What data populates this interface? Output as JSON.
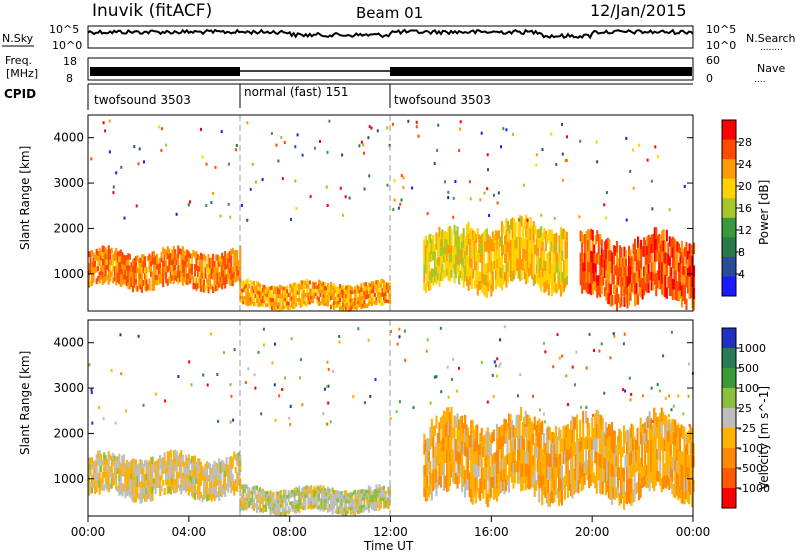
{
  "header": {
    "station": "Inuvik (fitACF)",
    "beam": "Beam 01",
    "date": "12/Jan/2015"
  },
  "nsky": {
    "label": "N.Sky",
    "ticks": [
      "10^5",
      "10^0"
    ],
    "right_ticks": [
      "10^5",
      "10^0"
    ],
    "right_label": "N.Search",
    "right_dots": "........"
  },
  "freq": {
    "label_line1": "Freq.",
    "label_line2": "[MHz]",
    "ticks": [
      "18",
      "8"
    ],
    "right_ticks": [
      "60",
      "0"
    ],
    "right_label": "Nave",
    "right_dots": "...."
  },
  "cpid": {
    "label": "CPID",
    "segments": [
      {
        "name": "twofsound 3503",
        "start_hour": 0,
        "end_hour": 6
      },
      {
        "name": "normal (fast) 151",
        "start_hour": 6,
        "end_hour": 12
      },
      {
        "name": "twofsound 3503",
        "start_hour": 12,
        "end_hour": 24
      }
    ]
  },
  "xaxis": {
    "label": "Time UT",
    "ticks": [
      "00:00",
      "04:00",
      "08:00",
      "12:00",
      "16:00",
      "20:00",
      "00:00"
    ],
    "range_hours": [
      0,
      24
    ]
  },
  "power_panel": {
    "ylabel": "Slant Range [km]",
    "yticks": [
      "4000",
      "3000",
      "2000",
      "1000"
    ],
    "colorbar_label": "Power [dB]",
    "colorbar_ticks": [
      "28",
      "24",
      "20",
      "16",
      "12",
      "8",
      "4"
    ]
  },
  "velocity_panel": {
    "ylabel": "Slant Range [km]",
    "yticks": [
      "4000",
      "3000",
      "2000",
      "1000"
    ],
    "colorbar_label": "Velocity [m s^-1]",
    "colorbar_ticks": [
      "1000",
      "500",
      "100",
      "25",
      "-25",
      "-100",
      "-500",
      "-1000"
    ]
  },
  "colors": {
    "power_scale": [
      "#ff0000",
      "#ff4a00",
      "#ff9a00",
      "#ffd200",
      "#a6c62a",
      "#3a9a3a",
      "#2a7a4a",
      "#2a4a9a",
      "#1a1aff"
    ],
    "velocity_scale": [
      "#2030c0",
      "#2a7a5a",
      "#3a9a3a",
      "#8ac03a",
      "#bdbdbd",
      "#ffb000",
      "#ff8a00",
      "#ff5a00",
      "#ff0000"
    ]
  },
  "chart_data": [
    {
      "type": "heatmap",
      "title": "Power",
      "x_range": [
        0,
        24
      ],
      "y_range": [
        180,
        4500
      ],
      "z_range": [
        0,
        30
      ],
      "xlabel": "Time UT",
      "ylabel": "Slant Range [km]",
      "colorbar": "Power [dB]",
      "bands": [
        {
          "start": 0.0,
          "end": 6.0,
          "low": 700,
          "high": 1500,
          "z": 24
        },
        {
          "start": 6.0,
          "end": 12.0,
          "low": 250,
          "high": 800,
          "z": 22
        },
        {
          "start": 13.3,
          "end": 15.0,
          "low": 700,
          "high": 1900,
          "z": 18
        },
        {
          "start": 15.0,
          "end": 19.0,
          "low": 700,
          "high": 2100,
          "z": 20
        },
        {
          "start": 19.5,
          "end": 24.0,
          "low": 400,
          "high": 1800,
          "z": 26
        }
      ]
    },
    {
      "type": "heatmap",
      "title": "Velocity",
      "x_range": [
        0,
        24
      ],
      "y_range": [
        180,
        4500
      ],
      "z_range": [
        -1000,
        1000
      ],
      "xlabel": "Time UT",
      "ylabel": "Slant Range [km]",
      "colorbar": "Velocity [m s^-1]",
      "bands": [
        {
          "start": 0.0,
          "end": 6.0,
          "low": 600,
          "high": 1500,
          "z": -100
        },
        {
          "start": 6.0,
          "end": 12.0,
          "low": 250,
          "high": 800,
          "z": 0
        },
        {
          "start": 13.3,
          "end": 24.0,
          "low": 600,
          "high": 2300,
          "z": -300
        }
      ]
    }
  ]
}
